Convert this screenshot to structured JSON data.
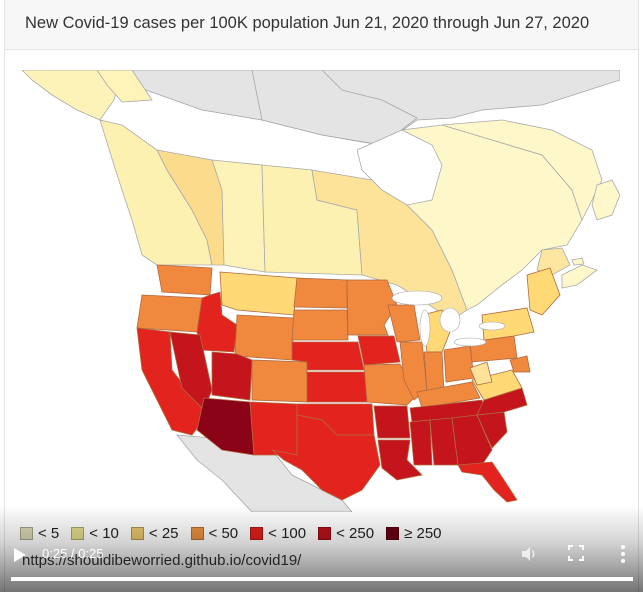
{
  "title": "New Covid-19 cases per 100K population Jun 21, 2020 through Jun 27, 2020",
  "legend": [
    {
      "label": "< 5",
      "color": "#d9d7b3"
    },
    {
      "label": "< 10",
      "color": "#e2dc8a"
    },
    {
      "label": "< 25",
      "color": "#e8c56a"
    },
    {
      "label": "< 50",
      "color": "#e89040"
    },
    {
      "label": "< 100",
      "color": "#e02018"
    },
    {
      "label": "< 250",
      "color": "#b8101a"
    },
    {
      "label": "≥ 250",
      "color": "#6a0010"
    }
  ],
  "colors": {
    "lt5": "#ffffcc",
    "lt10": "#fdefaa",
    "lt25": "#fed976",
    "lt50": "#f0883e",
    "lt100": "#e3231e",
    "lt250": "#c4151c",
    "ge250": "#8a0316",
    "no_data": "#e0e0e0",
    "water": "#ffffff",
    "border": "#9a9a9a"
  },
  "url": "https://shouldibeworried.github.io/covid19/",
  "player": {
    "time": "0:25 / 0:25",
    "progress": 1.0
  }
}
